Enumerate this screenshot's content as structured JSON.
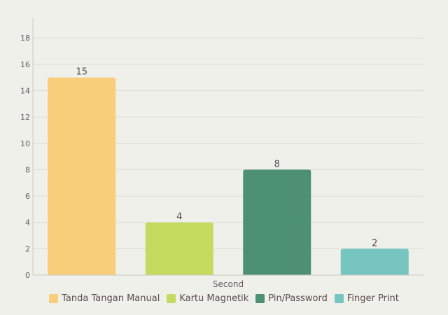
{
  "chart_data": {
    "type": "bar",
    "categories": [
      "Second"
    ],
    "series": [
      {
        "name": "Tanda Tangan Manual",
        "values": [
          15
        ],
        "color": "#f8ce7b"
      },
      {
        "name": "Kartu Magnetik",
        "values": [
          4
        ],
        "color": "#c3dc5f"
      },
      {
        "name": "Pin/Password",
        "values": [
          8
        ],
        "color": "#4e9073"
      },
      {
        "name": "Finger Print",
        "values": [
          2
        ],
        "color": "#77c5c0"
      }
    ],
    "yticks": [
      "0",
      "2",
      "4",
      "6",
      "8",
      "10",
      "12",
      "14",
      "16",
      "18"
    ],
    "ylim": [
      0,
      19.5
    ],
    "grid": true,
    "legend_position": "bottom",
    "title": "",
    "xlabel": "",
    "ylabel": ""
  }
}
